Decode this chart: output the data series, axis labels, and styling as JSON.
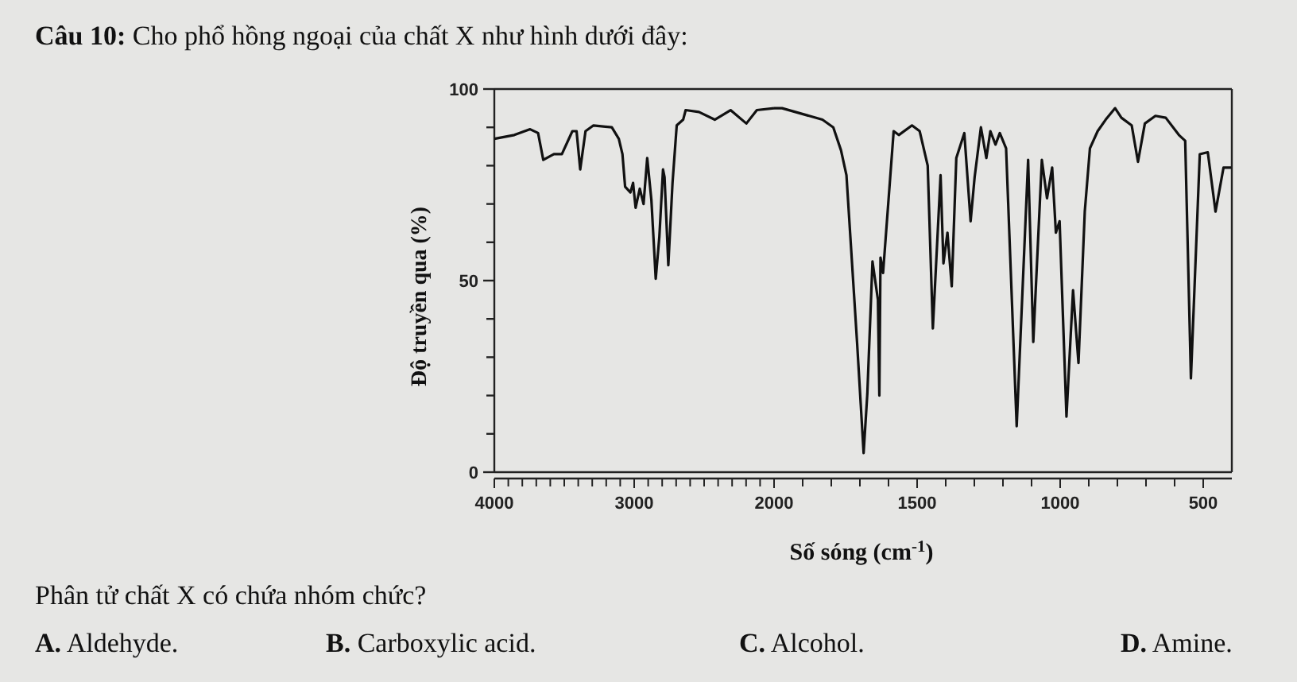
{
  "chart_data": [
    {
      "type": "line",
      "title": "Câu 10: Cho phổ hồng ngoại của chất X như hình dưới đây:",
      "ylabel": "Độ truyền qua (%)",
      "annotations": [
        "Phân tử chất X có chứa nhóm chức?",
        "A. Aldehyde.",
        "B. Carboxylic acid.",
        "C. Alcohol.",
        "D. Amine."
      ],
      "xlim": [
        4000,
        2000
      ],
      "ylim": [
        0,
        100
      ],
      "xticks": [
        4000,
        {
          "value": 3900,
          "label": null
        },
        {
          "value": 3800,
          "label": null
        },
        {
          "value": 3700,
          "label": null
        },
        {
          "value": 3600,
          "label": null
        },
        {
          "value": 3500,
          "label": null
        },
        {
          "value": 3400,
          "label": null
        },
        {
          "value": 3300,
          "label": null
        },
        {
          "value": 3200,
          "label": null
        },
        {
          "value": 3100,
          "label": null
        },
        3000,
        {
          "value": 2900,
          "label": null
        },
        {
          "value": 2800,
          "label": null
        },
        {
          "value": 2700,
          "label": null
        },
        {
          "value": 2600,
          "label": null
        },
        {
          "value": 2500,
          "label": null
        },
        {
          "value": 2400,
          "label": null
        },
        {
          "value": 2300,
          "label": null
        },
        {
          "value": 2200,
          "label": null
        },
        {
          "value": 2100,
          "label": null
        },
        2000
      ],
      "yticks": [
        0,
        {
          "value": 10,
          "label": null
        },
        {
          "value": 20,
          "label": null
        },
        {
          "value": 30,
          "label": null
        },
        {
          "value": 40,
          "label": null
        },
        50,
        {
          "value": 60,
          "label": null
        },
        {
          "value": 70,
          "label": null
        },
        {
          "value": 80,
          "label": null
        },
        {
          "value": 90,
          "label": null
        },
        100
      ],
      "grid": false,
      "marker": "none",
      "line_style": "solid",
      "series": [
        {
          "color": "#111111",
          "x": [
            4000,
            3857,
            3744,
            3687,
            3650,
            3574,
            3517,
            3442,
            3412,
            3386,
            3348,
            3291,
            3160,
            3110,
            3084,
            3065,
            3027,
            3008,
            2990,
            2960,
            2933,
            2907,
            2877,
            2846,
            2820,
            2794,
            2783,
            2756,
            2726,
            2696,
            2650,
            2632,
            2537,
            2424,
            2311,
            2198,
            2123,
            2000
          ],
          "values": [
            87,
            88,
            89.5,
            88.5,
            81.5,
            83,
            83,
            89,
            89,
            79,
            89,
            90.5,
            90,
            87,
            83,
            74.5,
            73,
            75.5,
            69,
            74,
            70,
            82,
            71,
            50.5,
            61.5,
            79,
            77,
            54,
            75.5,
            90.5,
            92,
            94.5,
            94,
            92,
            94.5,
            91,
            94.5,
            95
          ]
        }
      ]
    },
    {
      "type": "line",
      "xlabel": "Số sóng (cm$^{-1}$)",
      "xlim": [
        2000,
        400
      ],
      "ylim": [
        0,
        100
      ],
      "tick_labels": "x",
      "xticks": [
        {
          "value": 1900,
          "label": null
        },
        {
          "value": 1800,
          "label": null
        },
        {
          "value": 1700,
          "label": null
        },
        {
          "value": 1600,
          "label": null
        },
        1500,
        {
          "value": 1400,
          "label": null
        },
        {
          "value": 1300,
          "label": null
        },
        {
          "value": 1200,
          "label": null
        },
        {
          "value": 1100,
          "label": null
        },
        1000,
        {
          "value": 900,
          "label": null
        },
        {
          "value": 800,
          "label": null
        },
        {
          "value": 700,
          "label": null
        },
        {
          "value": 600,
          "label": null
        },
        500
      ],
      "grid": false,
      "marker": "none",
      "line_style": "solid",
      "series": [
        {
          "color": "#111111",
          "x": [
            2000,
            1972,
            1831,
            1793,
            1766,
            1747,
            1710,
            1687,
            1674,
            1656,
            1637,
            1632,
            1628,
            1619,
            1610,
            1582,
            1564,
            1518,
            1491,
            1463,
            1445,
            1418,
            1408,
            1394,
            1379,
            1363,
            1335,
            1313,
            1299,
            1277,
            1258,
            1244,
            1226,
            1211,
            1189,
            1152,
            1112,
            1094,
            1064,
            1046,
            1028,
            1015,
            1002,
            978,
            955,
            936,
            914,
            896,
            869,
            841,
            808,
            786,
            750,
            728,
            704,
            667,
            631,
            585,
            563,
            543,
            512,
            484,
            457,
            429,
            402
          ],
          "values": [
            95,
            95,
            92,
            90,
            84,
            77.5,
            34,
            5,
            20.5,
            55,
            45,
            20,
            56,
            52,
            61,
            89,
            88,
            90.5,
            89,
            80,
            37.5,
            77.5,
            54.5,
            62.5,
            48.5,
            82,
            88.5,
            65.5,
            77,
            90,
            82,
            89,
            85.5,
            88.5,
            84.5,
            12,
            81.5,
            34,
            81.5,
            71.5,
            79.5,
            62.5,
            65.5,
            14.5,
            47.5,
            28.5,
            68,
            84.5,
            89,
            92,
            95,
            92.5,
            90.5,
            81,
            91,
            93,
            92.5,
            88,
            86.5,
            24.5,
            83,
            83.5,
            68,
            79.5,
            79.5
          ]
        }
      ]
    }
  ]
}
